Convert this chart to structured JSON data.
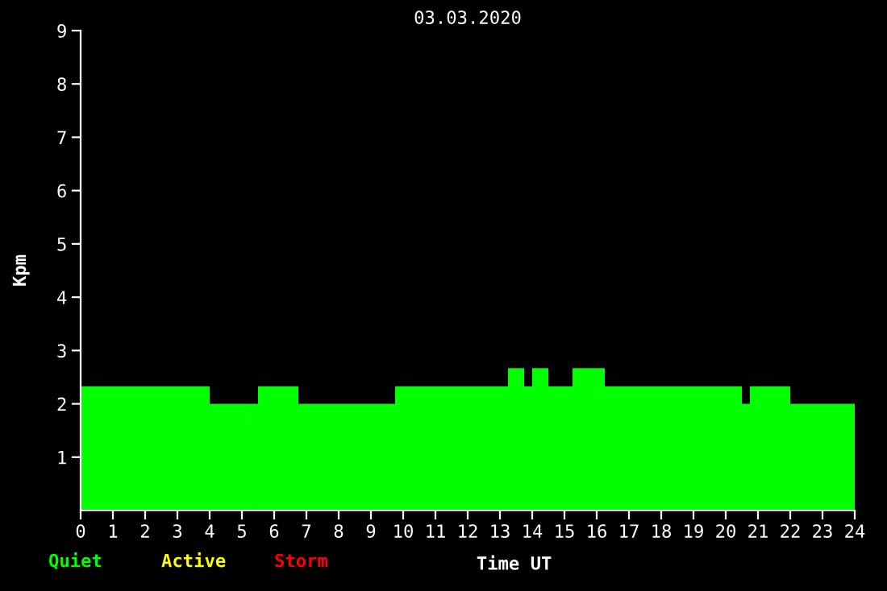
{
  "chart_data": {
    "type": "histogram",
    "title": "03.03.2020",
    "xlabel": "Time UT",
    "ylabel": "Kpm",
    "bins": [
      0,
      4,
      5.5,
      6.75,
      9.75,
      13.25,
      13.75,
      14,
      14.5,
      15.25,
      16.25,
      20.5,
      20.75,
      22,
      24
    ],
    "series": [
      {
        "name": "Quiet",
        "color": "#00ff00",
        "values": [
          2.33,
          2.0,
          2.33,
          2.0,
          2.33,
          2.67,
          2.33,
          2.67,
          2.33,
          2.67,
          2.33,
          2.0,
          2.33,
          2.0
        ]
      }
    ],
    "annotations": [
      "Active",
      "Storm"
    ],
    "xlim": [
      0,
      24
    ],
    "xticks": [
      0,
      1,
      2,
      3,
      4,
      5,
      6,
      7,
      8,
      9,
      10,
      11,
      12,
      13,
      14,
      15,
      16,
      17,
      18,
      19,
      20,
      21,
      22,
      23,
      24
    ],
    "ylim": [
      0,
      9
    ],
    "yticks": [
      1,
      2,
      3,
      4,
      5,
      6,
      7,
      8,
      9
    ],
    "grid": false,
    "legend": "bottom left"
  }
}
